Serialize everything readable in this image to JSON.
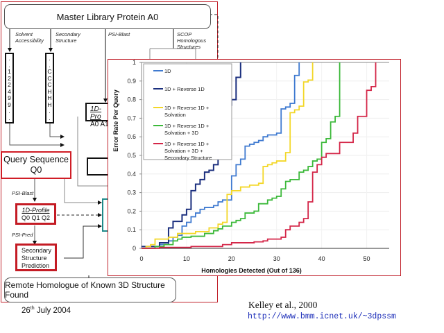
{
  "diagram": {
    "master_box": "Master Library Protein A0",
    "arrow_labels": {
      "solvent": [
        "Solvent",
        "Accessibility"
      ],
      "secondary": [
        "Secondary",
        "Structure"
      ],
      "psi_blast_top": "PSI-Blast",
      "scop": [
        "SCOP",
        "Homologous",
        "Structures"
      ],
      "psi_blast_query": "PSI-Blast",
      "psi_pred": "PSI-Pred"
    },
    "solvent_column": [
      ".",
      ".",
      "1",
      "2",
      "2",
      "4",
      "9",
      "9",
      ".",
      "."
    ],
    "secondary_column": [
      ".",
      ".",
      "C",
      "C",
      "C",
      "H",
      "H",
      "H",
      ".",
      "."
    ],
    "library_profile": {
      "title": "1D-Pro",
      "values": "A0 A1"
    },
    "query_box": [
      "Query Sequence",
      "Q0"
    ],
    "query_profile": {
      "title": "1D-Profile",
      "values": "Q0 Q1 Q2"
    },
    "ss_prediction": [
      "Secondary",
      "Structure",
      "Prediction"
    ],
    "remote_box": "Remote Homologue of Known 3D Structure Found"
  },
  "footer": {
    "date_day": "26",
    "date_suffix": "th",
    "date_rest": " July 2004",
    "citation": "Kelley et al., 2000",
    "url": "http://www.bmm.icnet.uk/~3dpssm"
  },
  "chart_data": {
    "type": "line",
    "step": true,
    "title": "",
    "xlabel": "Homologies Detected (Out of 136)",
    "ylabel": "Error Rate Per Query",
    "xlim": [
      0,
      55
    ],
    "ylim": [
      0,
      1
    ],
    "xticks": [
      "0",
      "10",
      "20",
      "30",
      "40",
      "50"
    ],
    "yticks": [
      "0",
      "0.1",
      "0.2",
      "0.3",
      "0.4",
      "0.5",
      "0.6",
      "0.7",
      "0.8",
      "0.9",
      "1"
    ],
    "legend_position": "top-left",
    "series": [
      {
        "name": "1D",
        "color": "#3f7ad0",
        "points": [
          [
            0,
            0.01
          ],
          [
            2,
            0.01
          ],
          [
            4,
            0.02
          ],
          [
            6,
            0.04
          ],
          [
            7,
            0.06
          ],
          [
            8,
            0.07
          ],
          [
            9,
            0.12
          ],
          [
            10,
            0.14
          ],
          [
            11,
            0.17
          ],
          [
            12,
            0.19
          ],
          [
            13,
            0.21
          ],
          [
            14,
            0.22
          ],
          [
            16,
            0.23
          ],
          [
            17,
            0.25
          ],
          [
            18,
            0.26
          ],
          [
            19,
            0.26
          ],
          [
            20,
            0.39
          ],
          [
            21,
            0.45
          ],
          [
            22,
            0.48
          ],
          [
            23,
            0.55
          ],
          [
            24,
            0.56
          ],
          [
            25,
            0.57
          ],
          [
            26,
            0.58
          ],
          [
            27,
            0.6
          ],
          [
            28,
            0.61
          ],
          [
            29,
            0.61
          ],
          [
            30,
            0.62
          ],
          [
            31,
            0.75
          ],
          [
            32,
            0.76
          ],
          [
            33,
            0.78
          ],
          [
            34,
            0.93
          ],
          [
            35,
            1.0
          ]
        ]
      },
      {
        "name": "1D + Reverse 1D",
        "color": "#1b2f7e",
        "points": [
          [
            0,
            0.01
          ],
          [
            4,
            0.03
          ],
          [
            6,
            0.11
          ],
          [
            7,
            0.145
          ],
          [
            9,
            0.18
          ],
          [
            10,
            0.21
          ],
          [
            11,
            0.31
          ],
          [
            12,
            0.345
          ],
          [
            13,
            0.37
          ],
          [
            14,
            0.41
          ],
          [
            15,
            0.42
          ],
          [
            16,
            0.45
          ],
          [
            17,
            0.53
          ],
          [
            18,
            0.6
          ],
          [
            19,
            0.77
          ],
          [
            20,
            0.8
          ],
          [
            21,
            0.92
          ],
          [
            22,
            1.0
          ]
        ]
      },
      {
        "name": "1D + Reverse 1D + Solvation",
        "color": "#f3d728",
        "points": [
          [
            0,
            0.0
          ],
          [
            1,
            0.01
          ],
          [
            2,
            0.02
          ],
          [
            3,
            0.05
          ],
          [
            6,
            0.06
          ],
          [
            8,
            0.08
          ],
          [
            12,
            0.09
          ],
          [
            15,
            0.11
          ],
          [
            17,
            0.13
          ],
          [
            18,
            0.14
          ],
          [
            19,
            0.29
          ],
          [
            20,
            0.31
          ],
          [
            22,
            0.33
          ],
          [
            24,
            0.34
          ],
          [
            26,
            0.35
          ],
          [
            27,
            0.44
          ],
          [
            28,
            0.45
          ],
          [
            29,
            0.46
          ],
          [
            30,
            0.47
          ],
          [
            32,
            0.515
          ],
          [
            33,
            0.73
          ],
          [
            34,
            0.745
          ],
          [
            35,
            0.765
          ],
          [
            36,
            0.895
          ],
          [
            37,
            0.905
          ],
          [
            38,
            1.0
          ]
        ]
      },
      {
        "name": "1D + Reverse 1D + Solvation + 3D",
        "color": "#3cb93a",
        "points": [
          [
            0,
            0.0
          ],
          [
            3,
            0.01
          ],
          [
            5,
            0.02
          ],
          [
            7,
            0.04
          ],
          [
            8,
            0.05
          ],
          [
            9,
            0.06
          ],
          [
            11,
            0.065
          ],
          [
            14,
            0.08
          ],
          [
            16,
            0.095
          ],
          [
            17,
            0.105
          ],
          [
            18,
            0.12
          ],
          [
            20,
            0.14
          ],
          [
            21,
            0.15
          ],
          [
            22,
            0.16
          ],
          [
            23,
            0.19
          ],
          [
            25,
            0.2
          ],
          [
            26,
            0.24
          ],
          [
            28,
            0.26
          ],
          [
            29,
            0.27
          ],
          [
            30,
            0.28
          ],
          [
            31,
            0.32
          ],
          [
            32,
            0.36
          ],
          [
            33,
            0.37
          ],
          [
            35,
            0.41
          ],
          [
            36,
            0.42
          ],
          [
            37,
            0.44
          ],
          [
            38,
            0.47
          ],
          [
            39,
            0.48
          ],
          [
            40,
            0.57
          ],
          [
            41,
            0.59
          ],
          [
            42,
            0.68
          ],
          [
            43,
            0.71
          ],
          [
            44,
            1.0
          ]
        ]
      },
      {
        "name": "1D + Reverse 1D + Solvation + 3D + Secondary Structure",
        "color": "#d42648",
        "points": [
          [
            0,
            0.0
          ],
          [
            4,
            0.005
          ],
          [
            11,
            0.01
          ],
          [
            18,
            0.02
          ],
          [
            20,
            0.03
          ],
          [
            25,
            0.035
          ],
          [
            27,
            0.04
          ],
          [
            28,
            0.05
          ],
          [
            31,
            0.06
          ],
          [
            32,
            0.1
          ],
          [
            33,
            0.12
          ],
          [
            35,
            0.14
          ],
          [
            36,
            0.16
          ],
          [
            37,
            0.25
          ],
          [
            38,
            0.41
          ],
          [
            39,
            0.45
          ],
          [
            40,
            0.49
          ],
          [
            41,
            0.51
          ],
          [
            44,
            0.57
          ],
          [
            47,
            0.62
          ],
          [
            48,
            0.71
          ],
          [
            50,
            0.85
          ],
          [
            51,
            0.87
          ],
          [
            52,
            1.0
          ]
        ]
      }
    ]
  }
}
